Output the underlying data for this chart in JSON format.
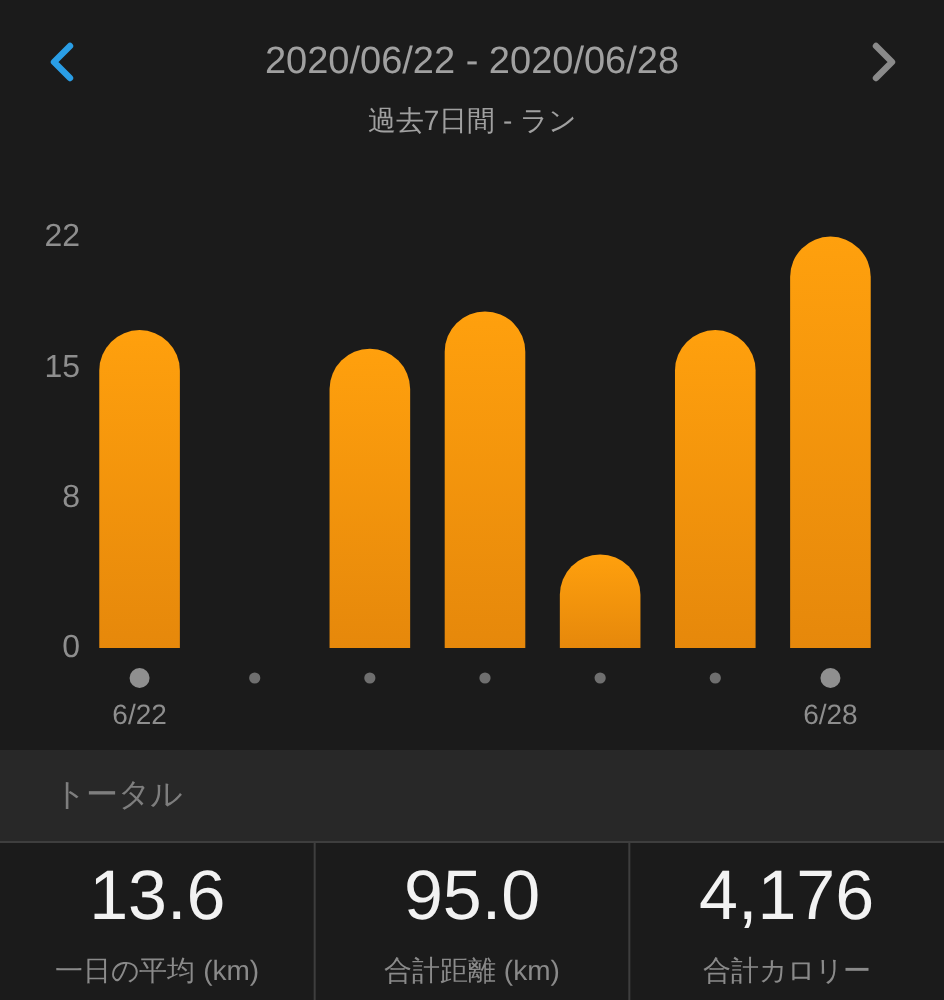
{
  "chart_data": {
    "type": "bar",
    "title": "2020/06/22 - 2020/06/28",
    "subtitle": "過去7日間 - ラン",
    "categories": [
      "6/22",
      null,
      null,
      null,
      null,
      null,
      "6/28"
    ],
    "values": [
      17.0,
      0,
      16.0,
      18.0,
      5.0,
      17.0,
      22.0
    ],
    "color": "#f7920c",
    "ylim": [
      0,
      22
    ],
    "yticks": [
      0,
      8,
      15,
      22
    ],
    "annotations": [
      "トータル",
      "13.6",
      "一日の平均 (km)",
      "95.0",
      "合計距離 (km)",
      "4,176",
      "合計カロリー"
    ]
  }
}
